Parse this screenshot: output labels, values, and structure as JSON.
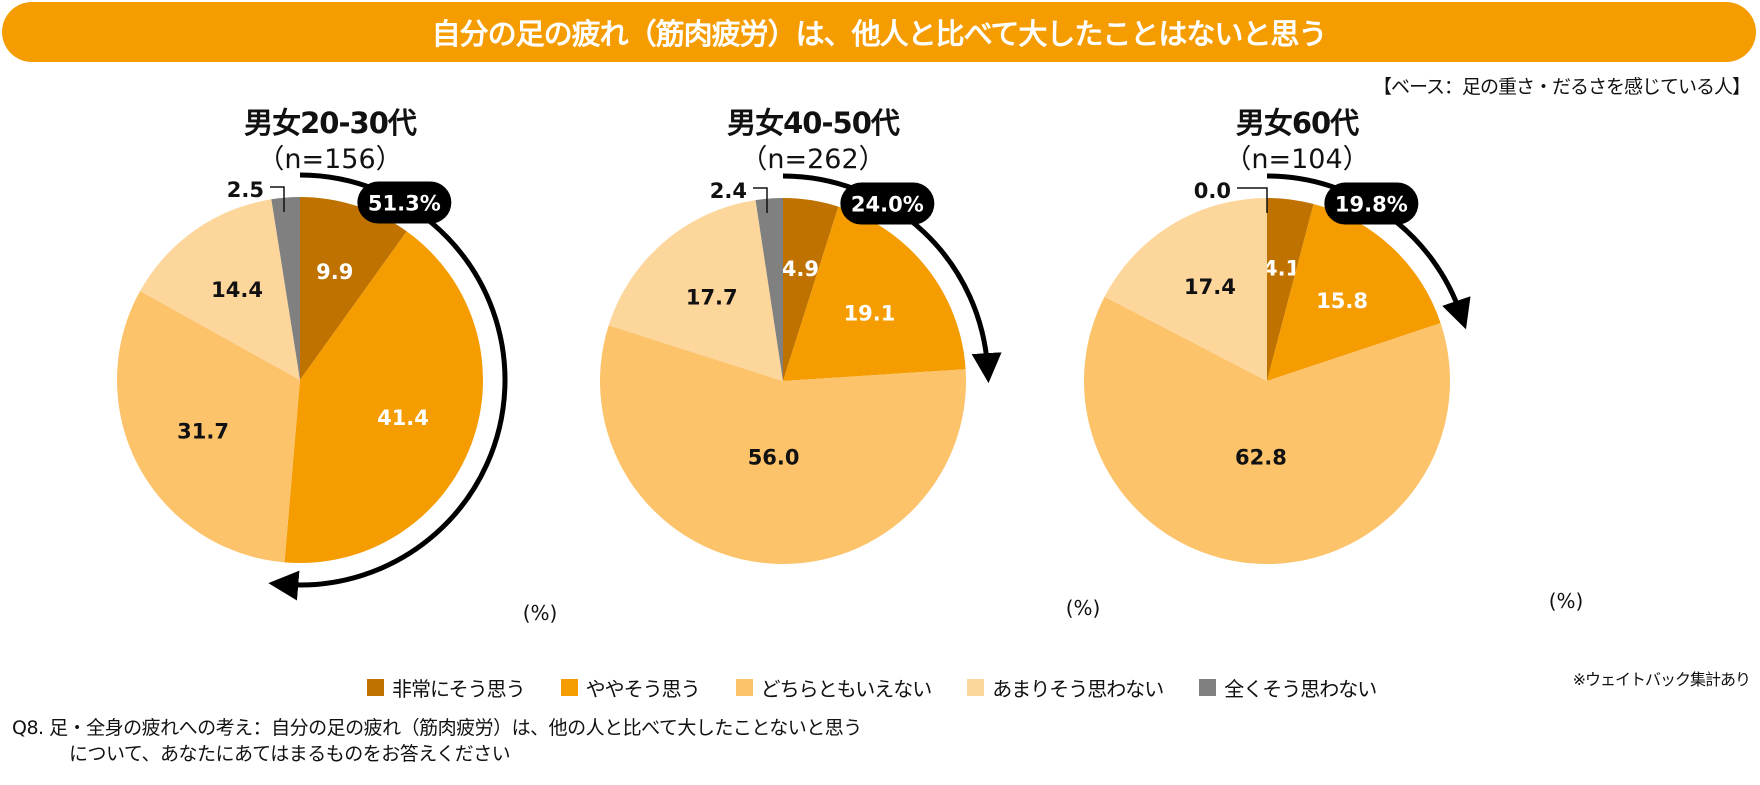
{
  "header": {
    "title": "自分の足の疲れ（筋肉疲労）は、他人と比べて大したことはないと思う",
    "base_note": "【ベース：足の重さ・だるさを感じている人】",
    "weight_note": "※ウェイトバック集計あり"
  },
  "question": {
    "line1": "Q8. 足・全身の疲れへの考え：自分の足の疲れ（筋肉疲労）は、他の人と比べて大したことないと思う",
    "line2": "について、あなたにあてはまるものをお答えください"
  },
  "colors": {
    "banner": "#f59c00",
    "text": "#111111"
  },
  "chart_data": [
    {
      "type": "pie",
      "title": "男女20-30代",
      "subtitle": "（n=156）",
      "unit_label": "(%)",
      "categories": [
        "非常にそう思う",
        "ややそう思う",
        "どちらともいえない",
        "あまりそう思わない",
        "全くそう思わない"
      ],
      "values": [
        9.9,
        41.4,
        31.7,
        14.4,
        2.5
      ],
      "value_labels": [
        "9.9",
        "41.4",
        "31.7",
        "14.4",
        "2.5"
      ],
      "colors": [
        "#bf7200",
        "#f59c00",
        "#fcc36b",
        "#fdd69c",
        "#808080"
      ],
      "callout": {
        "label": "51.3%",
        "value": 51.3,
        "covers": [
          "非常にそう思う",
          "ややそう思う"
        ]
      }
    },
    {
      "type": "pie",
      "title": "男女40-50代",
      "subtitle": "（n=262）",
      "unit_label": "(%)",
      "categories": [
        "非常にそう思う",
        "ややそう思う",
        "どちらともいえない",
        "あまりそう思わない",
        "全くそう思わない"
      ],
      "values": [
        4.9,
        19.1,
        56.0,
        17.7,
        2.4
      ],
      "value_labels": [
        "4.9",
        "19.1",
        "56.0",
        "17.7",
        "2.4"
      ],
      "colors": [
        "#bf7200",
        "#f59c00",
        "#fcc36b",
        "#fdd69c",
        "#808080"
      ],
      "callout": {
        "label": "24.0%",
        "value": 24.0,
        "covers": [
          "非常にそう思う",
          "ややそう思う"
        ]
      }
    },
    {
      "type": "pie",
      "title": "男女60代",
      "subtitle": "（n=104）",
      "unit_label": "(%)",
      "categories": [
        "非常にそう思う",
        "ややそう思う",
        "どちらともいえない",
        "あまりそう思わない",
        "全くそう思わない"
      ],
      "values": [
        4.1,
        15.8,
        62.8,
        17.4,
        0.0
      ],
      "value_labels": [
        "4.1",
        "15.8",
        "62.8",
        "17.4",
        "0.0"
      ],
      "colors": [
        "#bf7200",
        "#f59c00",
        "#fcc36b",
        "#fdd69c",
        "#808080"
      ],
      "callout": {
        "label": "19.8%",
        "value": 19.8,
        "covers": [
          "非常にそう思う",
          "ややそう思う"
        ]
      }
    }
  ],
  "legend": [
    {
      "label": "非常にそう思う",
      "color": "#bf7200"
    },
    {
      "label": "ややそう思う",
      "color": "#f59c00"
    },
    {
      "label": "どちらともいえない",
      "color": "#fcc36b"
    },
    {
      "label": "あまりそう思わない",
      "color": "#fdd69c"
    },
    {
      "label": "全くそう思わない",
      "color": "#808080"
    }
  ]
}
